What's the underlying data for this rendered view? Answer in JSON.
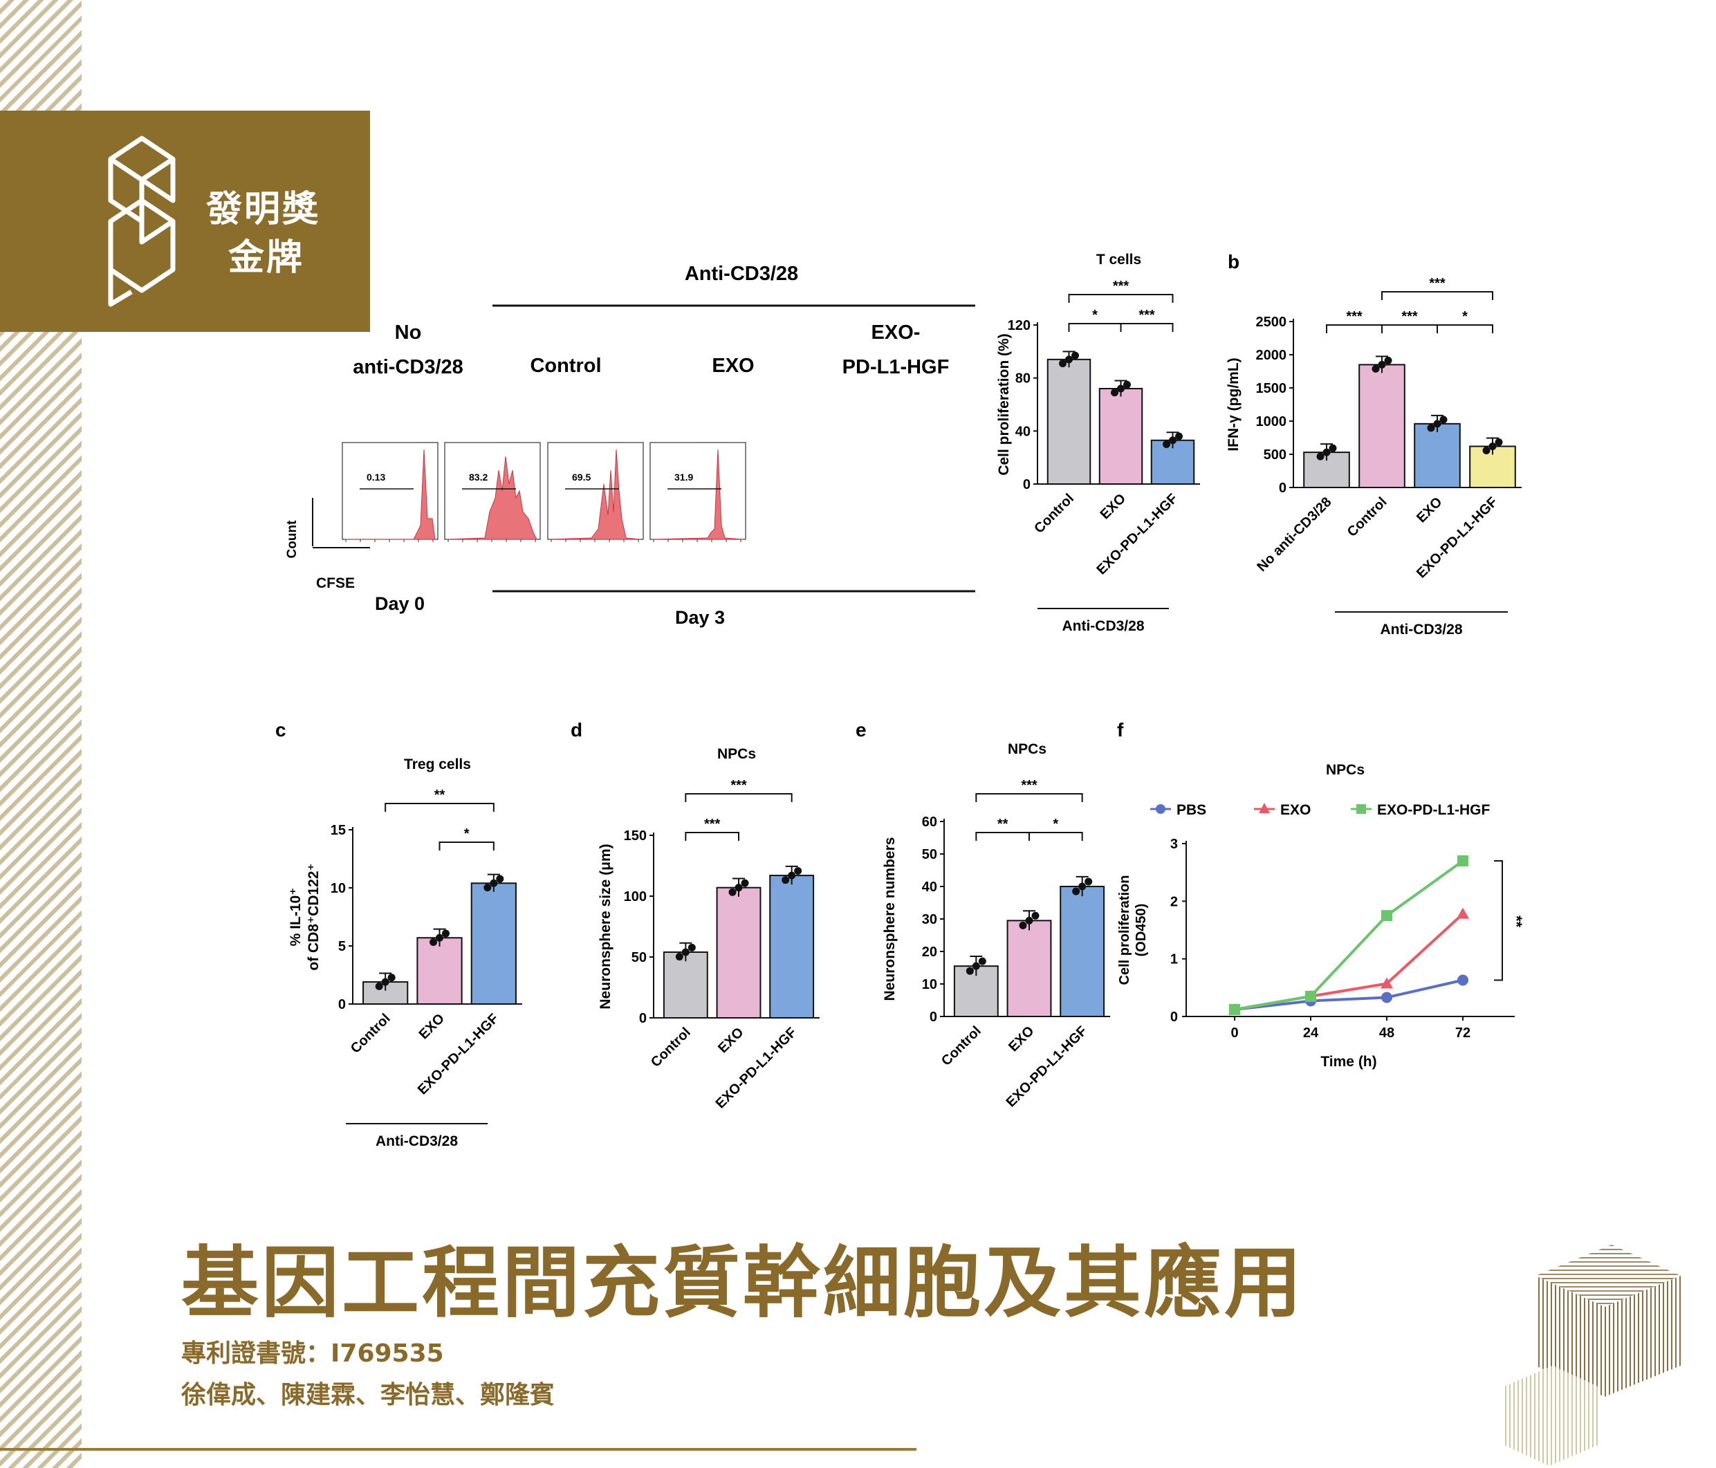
{
  "badge": {
    "line1": "發明獎",
    "line2": "金牌"
  },
  "title": "基因工程間充質幹細胞及其應用",
  "patent": "專利證書號：I769535",
  "authors": "徐偉成、陳建霖、李怡慧、鄭隆賓",
  "colors": {
    "brand": "#8c6e2c",
    "control": "#c8c8cc",
    "exo": "#e7b7d4",
    "exo_pd": "#7da7dc",
    "yellow": "#f2ec9a",
    "flow": "#e8747a"
  },
  "flow": {
    "header_anti": "Anti-CD3/28",
    "labels": {
      "no1": "No",
      "no2": "anti-CD3/28",
      "control": "Control",
      "exo": "EXO",
      "exopd1": "EXO-",
      "exopd2": "PD-L1-HGF"
    },
    "count": "Count",
    "cfse": "CFSE",
    "day0": "Day 0",
    "day3": "Day 3",
    "gates": [
      "0.13",
      "83.2",
      "69.5",
      "31.9"
    ]
  },
  "chart_data": [
    {
      "id": "a-bar",
      "type": "bar",
      "title": "T cells",
      "ylabel": "Cell proliferation (%)",
      "categories": [
        "Control",
        "EXO",
        "EXO-PD-L1-HGF"
      ],
      "values": [
        94,
        72,
        33
      ],
      "ylim": [
        0,
        120
      ],
      "ticks": [
        0,
        40,
        80,
        120
      ],
      "group_label": "Anti-CD3/28",
      "sig": [
        "***",
        "*",
        "***"
      ]
    },
    {
      "id": "b",
      "panel": "b",
      "type": "bar",
      "ylabel": "IFN-γ (pg/mL)",
      "categories": [
        "No anti-CD3/28",
        "Control",
        "EXO",
        "EXO-PD-L1-HGF"
      ],
      "values": [
        530,
        1850,
        960,
        620
      ],
      "ylim": [
        0,
        2500
      ],
      "ticks": [
        0,
        500,
        1000,
        1500,
        2000,
        2500
      ],
      "group_label": "Anti-CD3/28",
      "sig": [
        "***",
        "***",
        "***",
        "*"
      ]
    },
    {
      "id": "c",
      "panel": "c",
      "type": "bar",
      "title": "Treg cells",
      "ylabel1": "% IL-10⁺",
      "ylabel2": "of CD8⁺CD122⁺",
      "categories": [
        "Control",
        "EXO",
        "EXO-PD-L1-HGF"
      ],
      "values": [
        1.9,
        5.7,
        10.4
      ],
      "ylim": [
        0,
        15
      ],
      "ticks": [
        0,
        5,
        10,
        15
      ],
      "group_label": "Anti-CD3/28",
      "sig": [
        "**",
        "*"
      ]
    },
    {
      "id": "d",
      "panel": "d",
      "type": "bar",
      "title": "NPCs",
      "ylabel": "Neuronsphere size (μm)",
      "categories": [
        "Control",
        "EXO",
        "EXO-PD-L1-HGF"
      ],
      "values": [
        54,
        107,
        117
      ],
      "ylim": [
        0,
        150
      ],
      "ticks": [
        0,
        50,
        100,
        150
      ],
      "sig": [
        "***",
        "***"
      ]
    },
    {
      "id": "e",
      "panel": "e",
      "type": "bar",
      "title": "NPCs",
      "ylabel": "Neuronsphere numbers",
      "categories": [
        "Control",
        "EXO",
        "EXO-PD-L1-HGF"
      ],
      "values": [
        15.5,
        29.5,
        40
      ],
      "ylim": [
        0,
        60
      ],
      "ticks": [
        0,
        10,
        20,
        30,
        40,
        50,
        60
      ],
      "sig": [
        "***",
        "**",
        "*"
      ]
    },
    {
      "id": "f",
      "panel": "f",
      "type": "line",
      "title": "NPCs",
      "ylabel1": "Cell proliferation",
      "ylabel2": "(OD450)",
      "xlabel": "Time (h)",
      "x": [
        0,
        24,
        48,
        72
      ],
      "ylim": [
        0,
        3
      ],
      "ticks": [
        0,
        1,
        2,
        3
      ],
      "series": [
        {
          "name": "PBS",
          "values": [
            0.12,
            0.27,
            0.33,
            0.63
          ]
        },
        {
          "name": "EXO",
          "values": [
            0.12,
            0.35,
            0.57,
            1.78
          ]
        },
        {
          "name": "EXO-PD-L1-HGF",
          "values": [
            0.12,
            0.35,
            1.75,
            2.7
          ]
        }
      ],
      "sig": "**"
    }
  ]
}
